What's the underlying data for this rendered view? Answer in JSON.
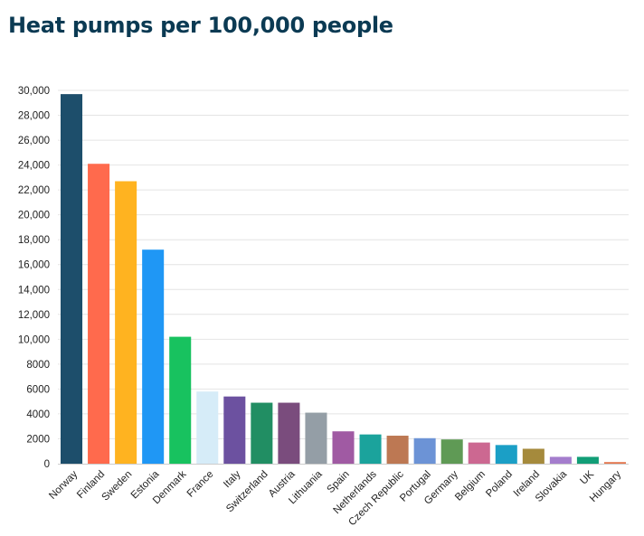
{
  "chart_data": {
    "type": "bar",
    "title": "Heat pumps per 100,000 people",
    "xlabel": "",
    "ylabel": "",
    "ylim": [
      0,
      30000
    ],
    "yticks": [
      0,
      2000,
      4000,
      6000,
      8000,
      10000,
      12000,
      14000,
      16000,
      18000,
      20000,
      22000,
      24000,
      26000,
      28000,
      30000
    ],
    "ytick_labels": [
      "0",
      "2000",
      "4000",
      "6000",
      "8000",
      "10,000",
      "12,000",
      "14,000",
      "16,000",
      "18,000",
      "20,000",
      "22,000",
      "24,000",
      "26,000",
      "28,000",
      "30,000"
    ],
    "grid": true,
    "legend": "none",
    "categories": [
      "Norway",
      "Finland",
      "Sweden",
      "Estonia",
      "Denmark",
      "France",
      "Italy",
      "Switzerland",
      "Austria",
      "Lithuania",
      "Spain",
      "Netherlands",
      "Czech Republic",
      "Portugal",
      "Germany",
      "Belgium",
      "Poland",
      "Ireland",
      "Slovakia",
      "UK",
      "Hungary"
    ],
    "values": [
      29700,
      24100,
      22700,
      17200,
      10200,
      5800,
      5400,
      4900,
      4900,
      4100,
      2600,
      2350,
      2250,
      2050,
      1950,
      1700,
      1500,
      1200,
      550,
      550,
      130
    ],
    "colors": [
      "#1d4e6b",
      "#ff6a4d",
      "#ffb320",
      "#1f97f5",
      "#18c25f",
      "#d6ecf8",
      "#6c51a0",
      "#218e63",
      "#7a4c7d",
      "#949ea6",
      "#a05aa3",
      "#1ba39c",
      "#bd7853",
      "#6c93d6",
      "#5f9a55",
      "#cc6891",
      "#1b9fc6",
      "#a58a3c",
      "#a47dcd",
      "#129e77",
      "#e5764d"
    ]
  }
}
